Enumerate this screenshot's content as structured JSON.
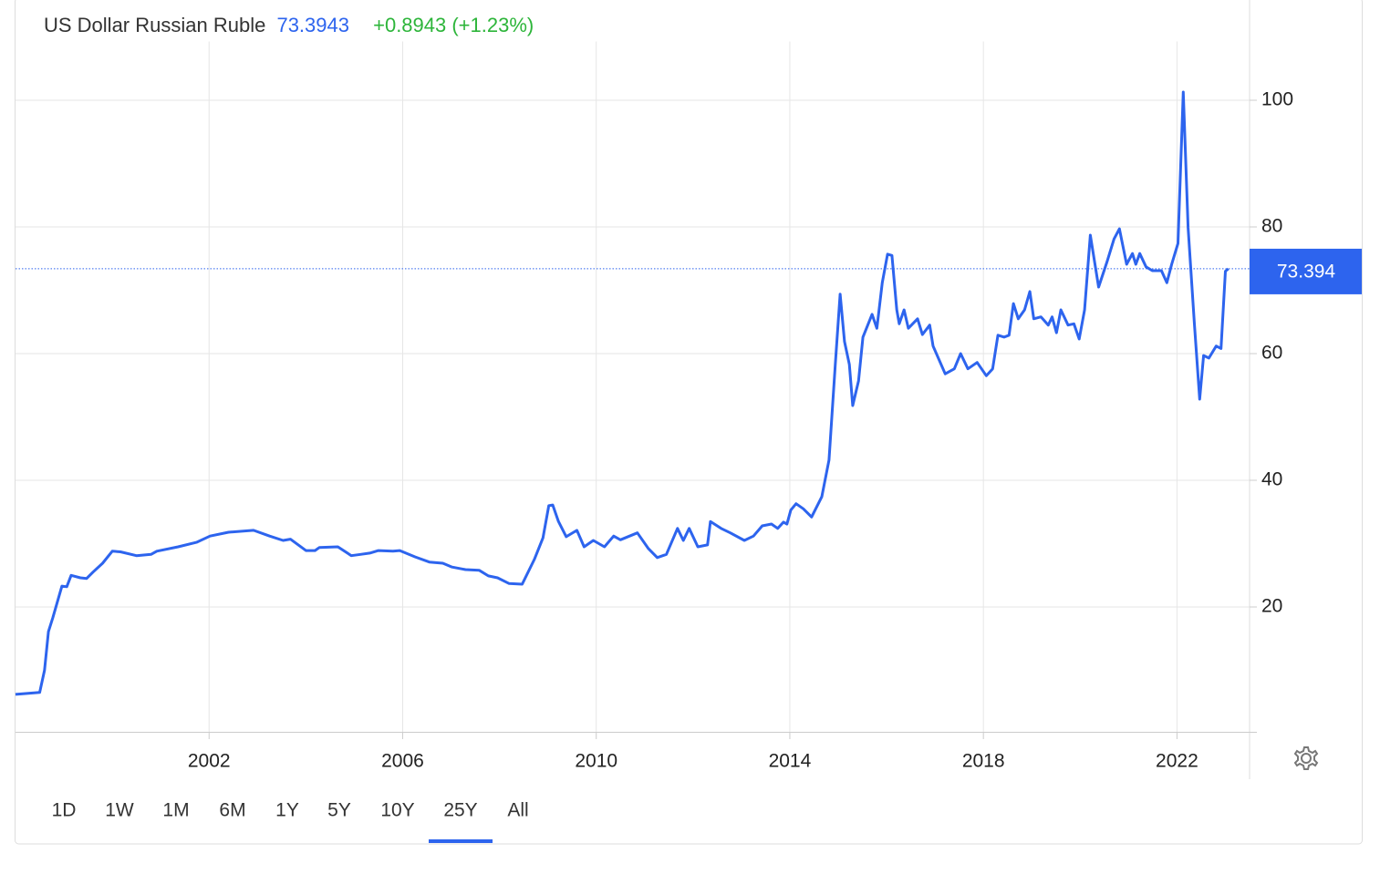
{
  "chart_data": {
    "type": "line",
    "title": "US Dollar Russian Ruble",
    "price": "73.3943",
    "change": "+0.8943 (+1.23%)",
    "last_value": 73.394,
    "x": [
      1998.0,
      1998.5,
      1998.6,
      1998.68,
      1998.77,
      1998.96,
      1999.06,
      1999.15,
      1999.34,
      1999.47,
      1999.6,
      1999.8,
      2000.0,
      2000.17,
      2000.5,
      2000.8,
      2000.92,
      2001.36,
      2001.74,
      2002.02,
      2002.4,
      2002.92,
      2003.25,
      2003.53,
      2003.68,
      2004.0,
      2004.19,
      2004.28,
      2004.66,
      2004.94,
      2005.13,
      2005.32,
      2005.5,
      2005.8,
      2005.94,
      2006.26,
      2006.55,
      2006.83,
      2007.02,
      2007.3,
      2007.58,
      2007.77,
      2007.96,
      2008.2,
      2008.47,
      2008.72,
      2008.9,
      2009.02,
      2009.1,
      2009.22,
      2009.38,
      2009.6,
      2009.75,
      2009.94,
      2010.17,
      2010.36,
      2010.5,
      2010.85,
      2011.08,
      2011.26,
      2011.45,
      2011.68,
      2011.8,
      2011.92,
      2012.1,
      2012.3,
      2012.36,
      2012.58,
      2012.77,
      2013.06,
      2013.25,
      2013.43,
      2013.62,
      2013.75,
      2013.87,
      2013.94,
      2014.02,
      2014.13,
      2014.28,
      2014.45,
      2014.66,
      2014.81,
      2014.94,
      2015.04,
      2015.13,
      2015.23,
      2015.3,
      2015.42,
      2015.51,
      2015.7,
      2015.8,
      2015.91,
      2016.02,
      2016.11,
      2016.21,
      2016.26,
      2016.36,
      2016.45,
      2016.64,
      2016.74,
      2016.89,
      2016.96,
      2017.21,
      2017.4,
      2017.53,
      2017.68,
      2017.87,
      2018.06,
      2018.19,
      2018.3,
      2018.43,
      2018.53,
      2018.62,
      2018.72,
      2018.85,
      2018.96,
      2019.04,
      2019.19,
      2019.34,
      2019.42,
      2019.51,
      2019.6,
      2019.75,
      2019.87,
      2019.98,
      2020.09,
      2020.21,
      2020.38,
      2020.55,
      2020.7,
      2020.81,
      2020.96,
      2021.08,
      2021.15,
      2021.23,
      2021.36,
      2021.49,
      2021.68,
      2021.79,
      2021.89,
      2022.02,
      2022.13,
      2022.23,
      2022.36,
      2022.47,
      2022.55,
      2022.66,
      2022.81,
      2022.91,
      2023.0,
      2023.06
    ],
    "series": [
      {
        "color": "#2d64ee",
        "values": [
          6.2,
          6.5,
          10,
          16.1,
          18.3,
          23.3,
          23.2,
          25,
          24.6,
          24.5,
          25.5,
          26.9,
          28.8,
          28.7,
          28.1,
          28.3,
          28.8,
          29.5,
          30.2,
          31.2,
          31.8,
          32.1,
          31.2,
          30.5,
          30.7,
          28.9,
          28.9,
          29.4,
          29.5,
          28.1,
          28.3,
          28.5,
          28.9,
          28.8,
          28.9,
          27.9,
          27.1,
          26.9,
          26.3,
          25.9,
          25.8,
          24.9,
          24.6,
          23.7,
          23.6,
          27.5,
          30.9,
          36,
          36.1,
          33.5,
          31.1,
          32.1,
          29.5,
          30.5,
          29.5,
          31.2,
          30.6,
          31.7,
          29.2,
          27.8,
          28.3,
          32.4,
          30.5,
          32.4,
          29.5,
          29.8,
          33.5,
          32.4,
          31.7,
          30.5,
          31.2,
          32.8,
          33.1,
          32.4,
          33.4,
          33.1,
          35.3,
          36.3,
          35.5,
          34.2,
          37.4,
          43.2,
          58.3,
          69.4,
          61.9,
          58.3,
          51.8,
          55.7,
          62.6,
          66.2,
          64.0,
          71.2,
          75.7,
          75.5,
          66.9,
          64.7,
          66.9,
          64.0,
          65.5,
          63.0,
          64.5,
          61.2,
          56.8,
          57.6,
          60.0,
          57.6,
          58.6,
          56.5,
          57.6,
          62.9,
          62.6,
          62.9,
          67.9,
          65.5,
          66.9,
          69.8,
          65.5,
          65.8,
          64.5,
          65.8,
          63.3,
          66.9,
          64.5,
          64.7,
          62.3,
          66.9,
          78.7,
          70.5,
          74.4,
          78.1,
          79.7,
          74.1,
          75.8,
          74.1,
          75.8,
          73.7,
          73.1,
          73.1,
          71.2,
          74.1,
          77.4,
          101.3,
          79.9,
          64.7,
          52.8,
          59.7,
          59.3,
          61.2,
          60.8,
          73.0,
          73.4
        ]
      }
    ],
    "xlim": [
      1998,
      2023.5
    ],
    "ylim": [
      0,
      110
    ],
    "xticks": [
      2002,
      2006,
      2010,
      2014,
      2018,
      2022
    ],
    "yticks": [
      20,
      40,
      60,
      80,
      100
    ],
    "grid": true,
    "ranges": [
      "1D",
      "1W",
      "1M",
      "6M",
      "1Y",
      "5Y",
      "10Y",
      "25Y",
      "All"
    ],
    "active_range": "25Y"
  }
}
